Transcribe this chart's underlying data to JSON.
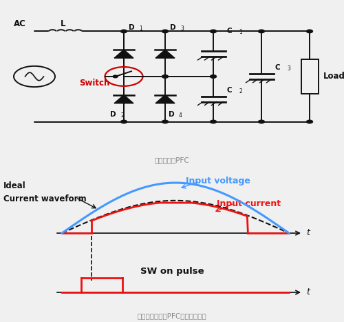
{
  "bg_color": "#f0f0f0",
  "circuit_label": "部分开关式PFC",
  "waveform_label": "使用部分开关式PFC后的电流波形",
  "text_ideal": "Ideal\nCurrent waveform",
  "text_input_voltage": "Input voltage",
  "text_input_current": "Input current",
  "text_sw": "SW on pulse",
  "text_ac": "AC",
  "text_l": "L",
  "text_switch": "Switch",
  "text_load": "Load",
  "color_blue": "#4499ff",
  "color_red": "#ee1111",
  "color_black": "#111111",
  "color_gray": "#888888",
  "color_switch_red": "#cc0000"
}
